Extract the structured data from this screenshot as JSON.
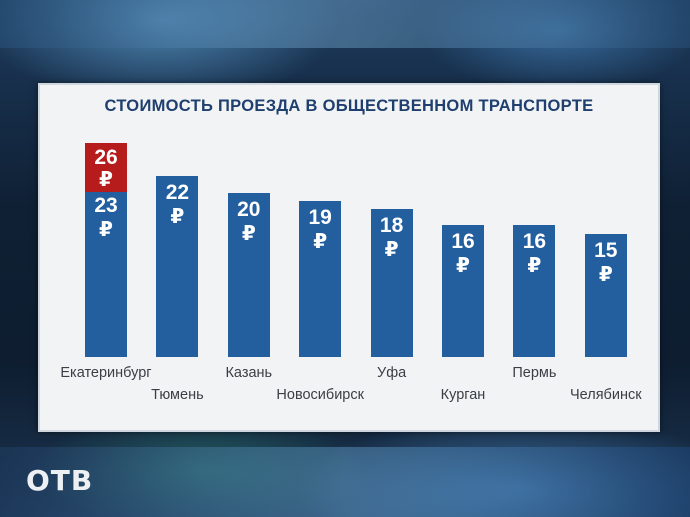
{
  "logo_text": "ОТВ",
  "currency_symbol": "₽",
  "chart_data": {
    "type": "bar",
    "title": "СТОИМОСТЬ ПРОЕЗДА В ОБЩЕСТВЕННОМ ТРАНСПОРТЕ",
    "xlabel": "",
    "ylabel": "",
    "categories": [
      "Екатеринбург",
      "Тюмень",
      "Казань",
      "Новосибирск",
      "Уфа",
      "Курган",
      "Пермь",
      "Челябинск"
    ],
    "values": [
      23,
      22,
      20,
      19,
      18,
      16,
      16,
      15
    ],
    "increase": {
      "category": "Екатеринбург",
      "from": 23,
      "to": 26
    },
    "colors": {
      "bar": "#235f9e",
      "increase": "#b61c1c"
    },
    "ylim": [
      0,
      26
    ],
    "grid": false,
    "legend": "none"
  }
}
